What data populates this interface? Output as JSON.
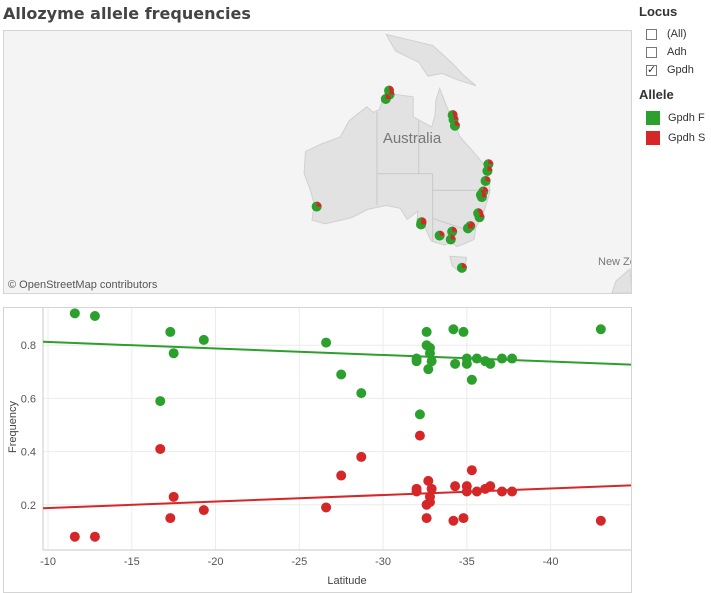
{
  "title": "Allozyme allele frequencies",
  "map": {
    "country_label": "Australia",
    "nz_label": "New Ze",
    "attribution": "© OpenStreetMap contributors",
    "sites": [
      {
        "lat": -11.1,
        "lon": 131.6
      },
      {
        "lat": -11.8,
        "lon": 131.7
      },
      {
        "lat": -12.6,
        "lon": 130.9
      },
      {
        "lat": -15.5,
        "lon": 145.3
      },
      {
        "lat": -16.3,
        "lon": 145.5
      },
      {
        "lat": -17.4,
        "lon": 145.8
      },
      {
        "lat": -24.3,
        "lon": 153.0
      },
      {
        "lat": -25.5,
        "lon": 152.8
      },
      {
        "lat": -27.3,
        "lon": 152.4
      },
      {
        "lat": -29.2,
        "lon": 151.9
      },
      {
        "lat": -29.8,
        "lon": 151.4
      },
      {
        "lat": -30.2,
        "lon": 151.6
      },
      {
        "lat": -31.9,
        "lon": 116.0
      },
      {
        "lat": -34.7,
        "lon": 138.6
      },
      {
        "lat": -35.1,
        "lon": 138.5
      },
      {
        "lat": -33.1,
        "lon": 150.8
      },
      {
        "lat": -33.8,
        "lon": 151.1
      },
      {
        "lat": -35.4,
        "lon": 149.1
      },
      {
        "lat": -35.8,
        "lon": 148.6
      },
      {
        "lat": -36.4,
        "lon": 145.2
      },
      {
        "lat": -37.8,
        "lon": 144.9
      },
      {
        "lat": -37.1,
        "lon": 142.5
      },
      {
        "lat": -42.9,
        "lon": 147.3
      }
    ]
  },
  "legend": {
    "locus_title": "Locus",
    "locus_options": [
      {
        "label": "(All)",
        "checked": false
      },
      {
        "label": "Adh",
        "checked": false
      },
      {
        "label": "Gpdh",
        "checked": true
      }
    ],
    "allele_title": "Allele",
    "allele_items": [
      {
        "label": "Gpdh F",
        "color": "#2ca02c"
      },
      {
        "label": "Gpdh S",
        "color": "#d62728"
      }
    ]
  },
  "chart_data": {
    "type": "scatter",
    "xlabel": "Latitude",
    "ylabel": "Frequency",
    "xlim": [
      -9.7,
      -44.8
    ],
    "ylim": [
      0.03,
      0.94
    ],
    "x_ticks": [
      -10,
      -15,
      -20,
      -25,
      -30,
      -35,
      -40
    ],
    "y_ticks": [
      0.2,
      0.4,
      0.6,
      0.8
    ],
    "grid": true,
    "series": [
      {
        "name": "Gpdh F",
        "color": "#2ca02c",
        "points": [
          [
            -11.6,
            0.92
          ],
          [
            -12.8,
            0.91
          ],
          [
            -16.7,
            0.59
          ],
          [
            -17.3,
            0.85
          ],
          [
            -17.5,
            0.77
          ],
          [
            -19.3,
            0.82
          ],
          [
            -26.6,
            0.81
          ],
          [
            -27.5,
            0.69
          ],
          [
            -28.7,
            0.62
          ],
          [
            -32.0,
            0.75
          ],
          [
            -32.0,
            0.74
          ],
          [
            -32.2,
            0.54
          ],
          [
            -32.6,
            0.85
          ],
          [
            -32.6,
            0.8
          ],
          [
            -32.7,
            0.71
          ],
          [
            -32.8,
            0.79
          ],
          [
            -32.8,
            0.77
          ],
          [
            -32.9,
            0.74
          ],
          [
            -34.2,
            0.86
          ],
          [
            -34.3,
            0.73
          ],
          [
            -34.8,
            0.85
          ],
          [
            -35.0,
            0.75
          ],
          [
            -35.0,
            0.73
          ],
          [
            -35.3,
            0.67
          ],
          [
            -35.6,
            0.75
          ],
          [
            -36.1,
            0.74
          ],
          [
            -36.4,
            0.73
          ],
          [
            -37.1,
            0.75
          ],
          [
            -37.7,
            0.75
          ],
          [
            -43.0,
            0.86
          ]
        ],
        "trend": [
          [
            -9.7,
            0.813
          ],
          [
            -44.8,
            0.727
          ]
        ]
      },
      {
        "name": "Gpdh S",
        "color": "#d62728",
        "points": [
          [
            -11.6,
            0.08
          ],
          [
            -12.8,
            0.08
          ],
          [
            -16.7,
            0.41
          ],
          [
            -17.3,
            0.15
          ],
          [
            -17.5,
            0.23
          ],
          [
            -19.3,
            0.18
          ],
          [
            -26.6,
            0.19
          ],
          [
            -27.5,
            0.31
          ],
          [
            -28.7,
            0.38
          ],
          [
            -32.0,
            0.26
          ],
          [
            -32.0,
            0.25
          ],
          [
            -32.2,
            0.46
          ],
          [
            -32.6,
            0.15
          ],
          [
            -32.6,
            0.2
          ],
          [
            -32.7,
            0.29
          ],
          [
            -32.8,
            0.21
          ],
          [
            -32.8,
            0.23
          ],
          [
            -32.9,
            0.26
          ],
          [
            -34.2,
            0.14
          ],
          [
            -34.3,
            0.27
          ],
          [
            -34.8,
            0.15
          ],
          [
            -35.0,
            0.25
          ],
          [
            -35.0,
            0.27
          ],
          [
            -35.3,
            0.33
          ],
          [
            -35.6,
            0.25
          ],
          [
            -36.1,
            0.26
          ],
          [
            -36.4,
            0.27
          ],
          [
            -37.1,
            0.25
          ],
          [
            -37.7,
            0.25
          ],
          [
            -43.0,
            0.14
          ]
        ],
        "trend": [
          [
            -9.7,
            0.187
          ],
          [
            -44.8,
            0.273
          ]
        ]
      }
    ]
  }
}
